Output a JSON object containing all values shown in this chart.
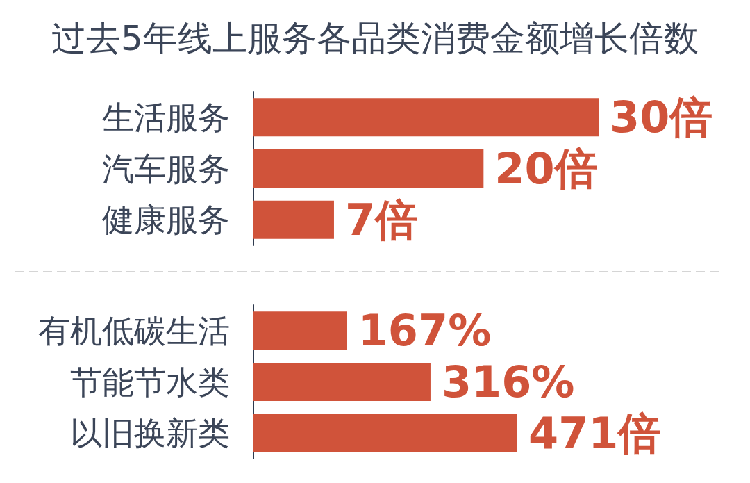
{
  "chart_data": [
    {
      "type": "bar",
      "title": "过去5年线上服务各品类消费金额增长倍数",
      "orientation": "horizontal",
      "categories": [
        "生活服务",
        "汽车服务",
        "健康服务"
      ],
      "values": [
        30,
        20,
        7
      ],
      "value_labels": [
        "30倍",
        "20倍",
        "7倍"
      ],
      "color": "#d0533a",
      "tick_labels": "y"
    },
    {
      "type": "bar",
      "orientation": "horizontal",
      "categories": [
        "有机低碳生活",
        "节能节水类",
        "以旧换新类"
      ],
      "values": [
        167,
        316,
        471
      ],
      "value_labels": [
        "167%",
        "316%",
        "471倍"
      ],
      "color": "#d0533a",
      "tick_labels": "y"
    }
  ]
}
